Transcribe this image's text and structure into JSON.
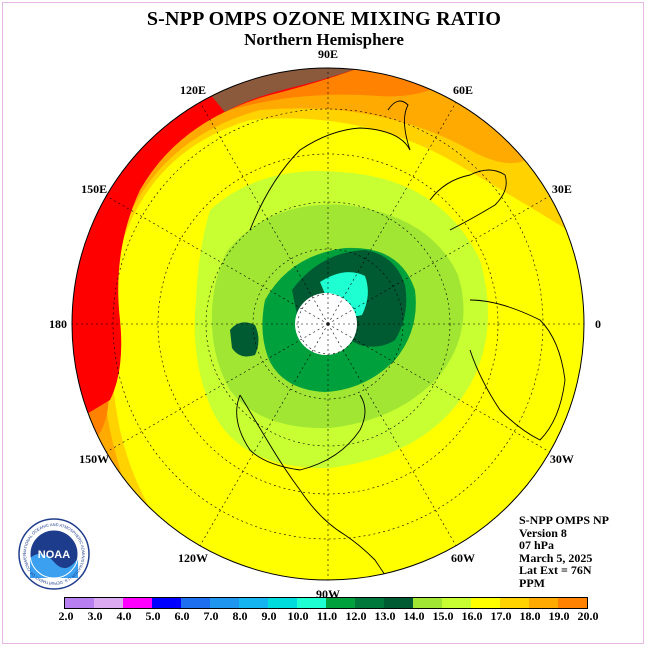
{
  "title": "S-NPP OMPS OZONE MIXING RATIO",
  "subtitle": "Northern Hemisphere",
  "logo_text": "NOAA",
  "logo_ring_text": "NATIONAL OCEANIC AND ATMOSPHERIC ADMINISTRATION U.S. DEPARTMENT OF COMMERCE",
  "longitude_labels": [
    "90E",
    "60E",
    "30E",
    "0",
    "30W",
    "60W",
    "90W",
    "120W",
    "150W",
    "180",
    "150E",
    "120E"
  ],
  "info": {
    "instrument": "S-NPP OMPS NP",
    "version": "Version 8",
    "level": "07 hPa",
    "date": "March 5, 2025",
    "lat_ext": "Lat Ext = 76N",
    "units": "PPM"
  },
  "colorbar": {
    "ticks": [
      "2.0",
      "3.0",
      "4.0",
      "5.0",
      "6.0",
      "7.0",
      "8.0",
      "9.0",
      "10.0",
      "11.0",
      "12.0",
      "13.0",
      "14.0",
      "15.0",
      "16.0",
      "17.0",
      "18.0",
      "19.0",
      "20.0"
    ],
    "colors": [
      "#b77ff0",
      "#dcaaf0",
      "#ff00ff",
      "#0000ff",
      "#1e6ff0",
      "#1e96f0",
      "#14b4f0",
      "#00dcdc",
      "#1effd2",
      "#00a03c",
      "#00783c",
      "#005a32",
      "#a0e632",
      "#c8ff32",
      "#ffff00",
      "#ffd200",
      "#ffaa00",
      "#ff8200",
      "#ff5000",
      "#ff0000",
      "#8b5a3c"
    ]
  },
  "legend_colors": {
    "night": "#ffffff",
    "coast": "#000000",
    "grid": "#000000"
  }
}
